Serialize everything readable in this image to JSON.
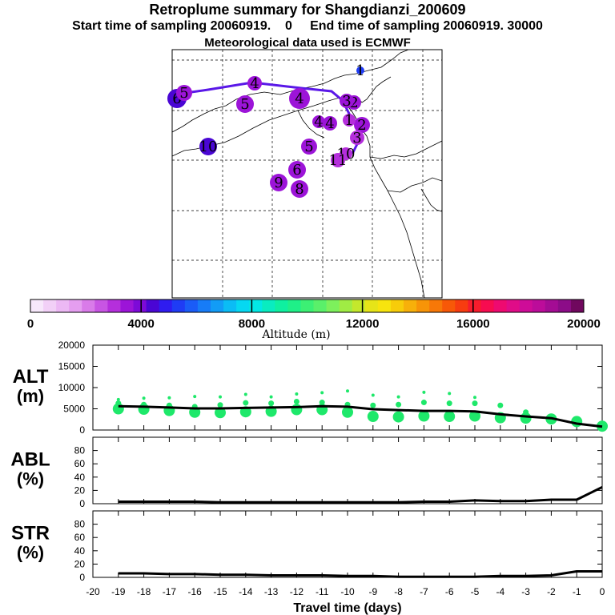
{
  "header": {
    "title": "Retroplume summary for Shangdianzi_200609",
    "line2": "Start time of sampling 20060919.    0     End time of sampling 20060919. 30000",
    "line3": "Meteorological data used is ECMWF"
  },
  "colors": {
    "path": "#5a18e8",
    "alt_dots": "#1ee86a",
    "line": "#000000",
    "grid": "#000000"
  },
  "colorbar": {
    "label": "Altitude (m)",
    "tick_labels": [
      "0",
      "4000",
      "8000",
      "12000",
      "16000",
      "20000"
    ],
    "colors": [
      "#f7e8fb",
      "#f2d0f7",
      "#ecb8f4",
      "#e59ef0",
      "#d97be9",
      "#c855e3",
      "#b52fdc",
      "#9c14d8",
      "#7d0ad8",
      "#4a06d4",
      "#2f1cf0",
      "#1f3cf5",
      "#1a5cf7",
      "#177cf7",
      "#129cf6",
      "#0bbcf5",
      "#06d8f2",
      "#03e8e4",
      "#09ecc0",
      "#0ff0a0",
      "#1ff088",
      "#3cf074",
      "#5af06a",
      "#7df05c",
      "#a0ec44",
      "#c4e82c",
      "#e6e418",
      "#f7e40e",
      "#f7cc0a",
      "#f7b00a",
      "#f79408",
      "#f77808",
      "#f75808",
      "#f73c10",
      "#f71c2c",
      "#f70c50",
      "#ee0a70",
      "#e00c88",
      "#ce0c98",
      "#bc0c9a",
      "#a40c94",
      "#8c0c88",
      "#70085e"
    ]
  },
  "map": {
    "points": [
      {
        "label": "1",
        "color": "#1f3cf5"
      },
      {
        "label": "2",
        "color": "#9c14d8"
      },
      {
        "label": "2",
        "color": "#9c14d8"
      },
      {
        "label": "3",
        "color": "#9c14d8"
      },
      {
        "label": "3",
        "color": "#b52fdc"
      },
      {
        "label": "4",
        "color": "#9c14d8"
      },
      {
        "label": "4",
        "color": "#9c14d8"
      },
      {
        "label": "4",
        "color": "#9c14d8"
      },
      {
        "label": "5",
        "color": "#9c14d8"
      },
      {
        "label": "5",
        "color": "#9c14d8"
      },
      {
        "label": "6",
        "color": "#9c14d8"
      },
      {
        "label": "6",
        "color": "#4a06d4"
      },
      {
        "label": "8",
        "color": "#9c14d8"
      },
      {
        "label": "9",
        "color": "#9c14d8"
      },
      {
        "label": "10",
        "color": "#4a06d4"
      },
      {
        "label": "10",
        "color": "#b52fdc"
      },
      {
        "label": "11",
        "color": "#b52fdc"
      },
      {
        "label": "5",
        "color": "#9c14d8"
      },
      {
        "label": "1",
        "color": "#b52fdc"
      },
      {
        "label": "4",
        "color": "#9c14d8"
      }
    ]
  },
  "chart_data": [
    {
      "type": "line",
      "panel": "ALT",
      "ylabel": "ALT\n(m)",
      "xlabel": "Travel time (days)",
      "ylim": [
        0,
        20000
      ],
      "yticks": [
        0,
        5000,
        10000,
        15000,
        20000
      ],
      "xlim": [
        -20,
        0
      ],
      "x": [
        -19,
        -18,
        -17,
        -16,
        -15,
        -14,
        -13,
        -12,
        -11,
        -10,
        -9,
        -8,
        -7,
        -6,
        -5,
        -4,
        -3,
        -2,
        -1,
        0
      ],
      "values": [
        5600,
        5500,
        5300,
        5100,
        5100,
        5200,
        5300,
        5400,
        5600,
        5500,
        4900,
        4700,
        4500,
        4500,
        4400,
        3700,
        3200,
        2800,
        1500,
        800
      ],
      "scatter_large": [
        5000,
        4900,
        4600,
        4200,
        4100,
        4300,
        4400,
        4800,
        4800,
        4200,
        3200,
        3100,
        3300,
        3200,
        3300,
        2900,
        2800,
        2600,
        2000,
        900
      ],
      "scatter_mid": [
        6300,
        6000,
        5800,
        5500,
        5900,
        6400,
        6300,
        6700,
        6500,
        6000,
        5800,
        6000,
        6500,
        6300,
        6300,
        5800,
        4200,
        0,
        0,
        0
      ],
      "scatter_top": [
        7200,
        7500,
        7600,
        7900,
        7800,
        8400,
        7800,
        8500,
        8800,
        9200,
        8200,
        7800,
        8900,
        8600,
        7700,
        5900,
        3600,
        0,
        0,
        0
      ]
    },
    {
      "type": "line",
      "panel": "ABL",
      "ylabel": "ABL\n(%)",
      "ylim": [
        0,
        100
      ],
      "yticks": [
        0,
        20,
        40,
        60,
        80
      ],
      "x": [
        -19,
        -18,
        -17,
        -16,
        -15,
        -14,
        -13,
        -12,
        -11,
        -10,
        -9,
        -8,
        -7,
        -6,
        -5,
        -4,
        -3,
        -2,
        -1,
        0
      ],
      "values": [
        3,
        3,
        3,
        3,
        2,
        2,
        2,
        2,
        2,
        2,
        2,
        2,
        3,
        3,
        5,
        4,
        4,
        6,
        6,
        25
      ]
    },
    {
      "type": "line",
      "panel": "STR",
      "ylabel": "STR\n(%)",
      "ylim": [
        0,
        100
      ],
      "yticks": [
        0,
        20,
        40,
        60,
        80
      ],
      "x": [
        -19,
        -18,
        -17,
        -16,
        -15,
        -14,
        -13,
        -12,
        -11,
        -10,
        -9,
        -8,
        -7,
        -6,
        -5,
        -4,
        -3,
        -2,
        -1,
        0
      ],
      "values": [
        6,
        6,
        5,
        5,
        4,
        4,
        3,
        3,
        3,
        2,
        2,
        1,
        1,
        1,
        1,
        2,
        2,
        3,
        9,
        9
      ],
      "xtick_labels": [
        "-20",
        "-19",
        "-18",
        "-17",
        "-16",
        "-15",
        "-14",
        "-13",
        "-12",
        "-11",
        "-10",
        "-9",
        "-8",
        "-7",
        "-6",
        "-5",
        "-4",
        "-3",
        "-2",
        "-1",
        "0"
      ]
    }
  ]
}
